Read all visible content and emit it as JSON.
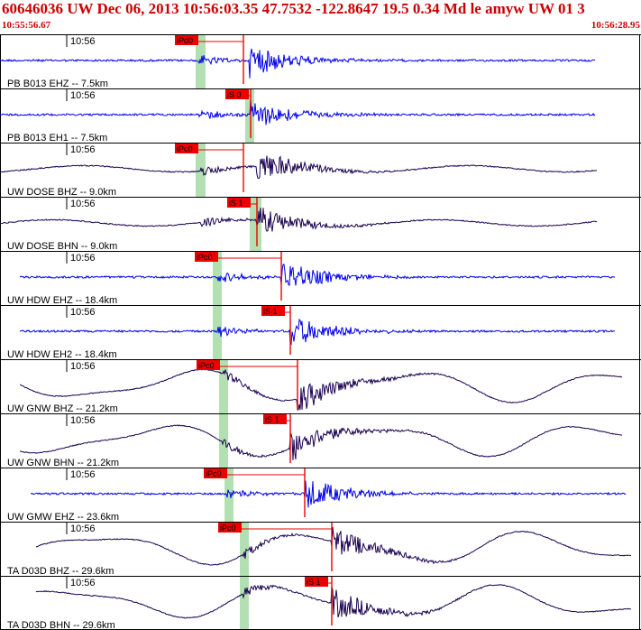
{
  "header": {
    "title": "60646036 UW Dec 06, 2013 10:56:03.35   47.7532 -122.8647 19.5 0.34 Md le amyw UW 01   3",
    "start_time": "10:55:56.67",
    "end_time": "10:56:28.95"
  },
  "colors": {
    "header_red": "#cc0000",
    "blue_trace": "#0000ee",
    "dark_trace": "#1a0050",
    "pick_red": "#ee0000",
    "window_green": "#b3e0b3"
  },
  "minute_tick_label": "10:56",
  "traces": [
    {
      "label": "PB B013 EHZ -- 7.5km",
      "pick": "iPd0",
      "color": "blue",
      "type": "hf",
      "amp": 1.0
    },
    {
      "label": "PB B013 EH1 -- 7.5km",
      "pick": "iS 0",
      "color": "blue",
      "type": "hf",
      "amp": 0.9
    },
    {
      "label": "UW DOSE BHZ -- 9.0km",
      "pick": "iPc0",
      "color": "dark",
      "type": "lf",
      "amp": 1.0
    },
    {
      "label": "UW DOSE BHN -- 9.0km",
      "pick": "iS 1",
      "color": "dark",
      "type": "lf",
      "amp": 0.9
    },
    {
      "label": "UW HDW EHZ -- 18.4km",
      "pick": "iPc0",
      "color": "blue",
      "type": "hf",
      "amp": 1.0
    },
    {
      "label": "UW HDW EH2 -- 18.4km",
      "pick": "iS 1",
      "color": "blue",
      "type": "hf",
      "amp": 1.0
    },
    {
      "label": "UW GNW BHZ -- 21.2km",
      "pick": "iPc0",
      "color": "dark",
      "type": "vlf",
      "amp": 1.0
    },
    {
      "label": "UW GNW BHN -- 21.2km",
      "pick": "iS 1",
      "color": "dark",
      "type": "vlf",
      "amp": 1.0
    },
    {
      "label": "UW GMW EHZ -- 23.6km",
      "pick": "iPc0",
      "color": "blue",
      "type": "hf",
      "amp": 1.0
    },
    {
      "label": "TA D03D BHZ -- 29.6km",
      "pick": "iPc0",
      "color": "dark",
      "type": "vlf",
      "amp": 1.0
    },
    {
      "label": "TA D03D BHN -- 29.6km",
      "pick": "iS 1",
      "color": "dark",
      "type": "vlf",
      "amp": 1.0
    }
  ]
}
